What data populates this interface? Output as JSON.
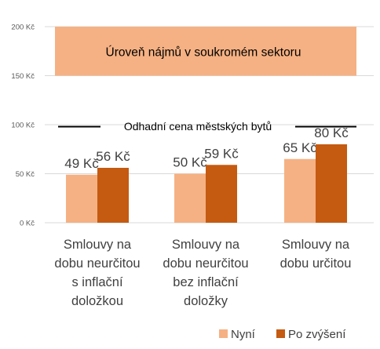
{
  "colors": {
    "nyni": "#f5b183",
    "po_zvyseni": "#c55a11",
    "band": "#f5b183",
    "grid": "#d9d9d9",
    "line": "#000000",
    "text": "#404040",
    "tick": "#595959"
  },
  "chart_data": {
    "type": "bar",
    "title": "",
    "ylim": [
      0,
      200
    ],
    "y_ticks": [
      {
        "value": 0,
        "label": "0 Kč"
      },
      {
        "value": 50,
        "label": "50 Kč"
      },
      {
        "value": 100,
        "label": "100 Kč"
      },
      {
        "value": 150,
        "label": "150 Kč"
      },
      {
        "value": 200,
        "label": "200 Kč"
      }
    ],
    "grid": true,
    "categories": [
      [
        "Smlouvy na",
        "dobu neurčitou",
        "s inflační",
        "doložkou"
      ],
      [
        "Smlouvy na",
        "dobu neurčitou",
        "bez inflační",
        "doložky"
      ],
      [
        "Smlouvy na",
        "dobu určitou"
      ]
    ],
    "series": [
      {
        "name": "Nyní",
        "values": [
          49,
          50,
          65
        ],
        "labels": [
          "49 Kč",
          "50 Kč",
          "65 Kč"
        ]
      },
      {
        "name": "Po zvýšení",
        "values": [
          56,
          59,
          80
        ],
        "labels": [
          "56 Kč",
          "59 Kč",
          "80 Kč"
        ]
      }
    ],
    "band": {
      "from": 150,
      "to": 200,
      "label": "Úroveň nájmů v soukromém sektoru"
    },
    "reference_line": {
      "value": 98,
      "label": "Odhadní cena městských bytů"
    },
    "legend_position": "bottom-right"
  }
}
